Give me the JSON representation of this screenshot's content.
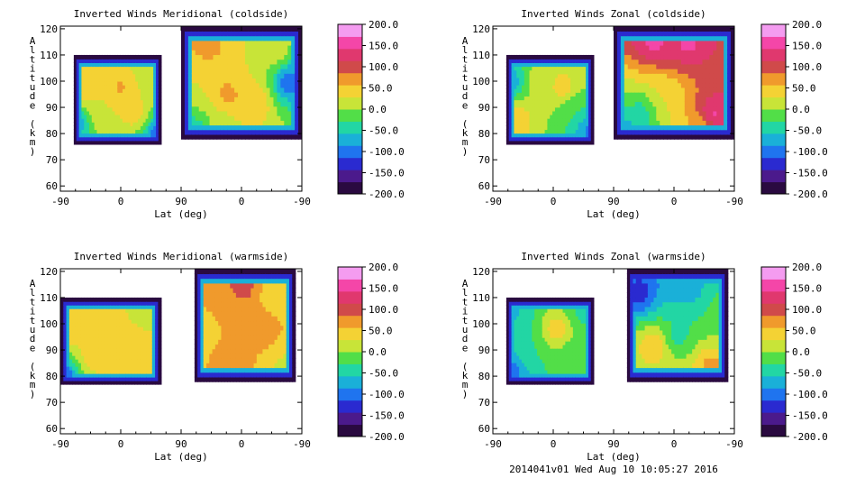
{
  "chart_data": [
    {
      "type": "heatmap",
      "title": "Inverted Winds Meridional (coldside)",
      "xlabel": "Lat (deg)",
      "ylabel": "Altitude (km)",
      "x_tick_labels": [
        "-90",
        "0",
        "90",
        "0",
        "-90"
      ],
      "y_ticks": [
        60,
        70,
        80,
        90,
        100,
        110,
        120
      ],
      "ylim": [
        58,
        121
      ],
      "colorbar_ticks": [
        "200.0",
        "150.0",
        "100.0",
        "50.0",
        "0.0",
        "-50.0",
        "-100.0",
        "-150.0",
        "-200.0"
      ],
      "clim": [
        -200,
        200
      ],
      "regions": [
        {
          "x_from": -70,
          "x_to": 60,
          "alt_from": 76,
          "alt_to": 110,
          "hotspots": [
            {
              "x": -55,
              "alt": 96,
              "v": 55
            },
            {
              "x": 0,
              "alt": 98,
              "v": 65
            },
            {
              "x": 20,
              "alt": 88,
              "v": 50
            },
            {
              "x": -30,
              "alt": 88,
              "v": 30
            },
            {
              "x": 40,
              "alt": 104,
              "v": 10
            },
            {
              "x": -65,
              "alt": 85,
              "v": -90
            },
            {
              "x": 55,
              "alt": 80,
              "v": -110
            }
          ]
        },
        {
          "x_from": 90,
          "x_to": 270,
          "alt_from": 78,
          "alt_to": 121,
          "hotspots": [
            {
              "x": 130,
              "alt": 115,
              "v": 70
            },
            {
              "x": 160,
              "alt": 95,
              "v": 70
            },
            {
              "x": 200,
              "alt": 92,
              "v": 60
            },
            {
              "x": 225,
              "alt": 112,
              "v": 30
            },
            {
              "x": 150,
              "alt": 83,
              "v": 10
            },
            {
              "x": 250,
              "alt": 100,
              "v": -110
            },
            {
              "x": 110,
              "alt": 80,
              "v": -60
            }
          ]
        }
      ]
    },
    {
      "type": "heatmap",
      "title": "Inverted Winds Zonal (coldside)",
      "xlabel": "Lat (deg)",
      "ylabel": "Altitude (km)",
      "x_tick_labels": [
        "-90",
        "0",
        "90",
        "0",
        "-90"
      ],
      "y_ticks": [
        60,
        70,
        80,
        90,
        100,
        110,
        120
      ],
      "ylim": [
        58,
        121
      ],
      "colorbar_ticks": [
        "200.0",
        "150.0",
        "100.0",
        "50.0",
        "0.0",
        "-50.0",
        "-100.0",
        "-150.0",
        "-200.0"
      ],
      "clim": [
        -200,
        200
      ],
      "regions": [
        {
          "x_from": -70,
          "x_to": 60,
          "alt_from": 76,
          "alt_to": 110,
          "hotspots": [
            {
              "x": -55,
              "alt": 86,
              "v": 60
            },
            {
              "x": 15,
              "alt": 98,
              "v": 55
            },
            {
              "x": -20,
              "alt": 100,
              "v": 20
            },
            {
              "x": 30,
              "alt": 90,
              "v": -30
            },
            {
              "x": 45,
              "alt": 104,
              "v": 10
            },
            {
              "x": -65,
              "alt": 100,
              "v": -90
            },
            {
              "x": 55,
              "alt": 82,
              "v": -100
            }
          ]
        },
        {
          "x_from": 90,
          "x_to": 270,
          "alt_from": 78,
          "alt_to": 121,
          "hotspots": [
            {
              "x": 150,
              "alt": 116,
              "v": 160
            },
            {
              "x": 200,
              "alt": 114,
              "v": 150
            },
            {
              "x": 240,
              "alt": 88,
              "v": 150
            },
            {
              "x": 170,
              "alt": 95,
              "v": 30
            },
            {
              "x": 130,
              "alt": 88,
              "v": -40
            },
            {
              "x": 110,
              "alt": 80,
              "v": -90
            },
            {
              "x": 220,
              "alt": 80,
              "v": 40
            }
          ]
        }
      ]
    },
    {
      "type": "heatmap",
      "title": "Inverted Winds Meridional (warmside)",
      "xlabel": "Lat (deg)",
      "ylabel": "Altitude (km)",
      "x_tick_labels": [
        "-90",
        "0",
        "90",
        "0",
        "-90"
      ],
      "y_ticks": [
        60,
        70,
        80,
        90,
        100,
        110,
        120
      ],
      "ylim": [
        58,
        121
      ],
      "colorbar_ticks": [
        "200.0",
        "150.0",
        "100.0",
        "50.0",
        "0.0",
        "-50.0",
        "-100.0",
        "-150.0",
        "-200.0"
      ],
      "clim": [
        -200,
        200
      ],
      "regions": [
        {
          "x_from": -90,
          "x_to": 60,
          "alt_from": 77,
          "alt_to": 110,
          "hotspots": [
            {
              "x": -70,
              "alt": 98,
              "v": 50
            },
            {
              "x": -15,
              "alt": 96,
              "v": 40
            },
            {
              "x": 25,
              "alt": 92,
              "v": 50
            },
            {
              "x": -40,
              "alt": 88,
              "v": 55
            },
            {
              "x": 40,
              "alt": 104,
              "v": 10
            },
            {
              "x": -85,
              "alt": 80,
              "v": -120
            }
          ]
        },
        {
          "x_from": 110,
          "x_to": 260,
          "alt_from": 78,
          "alt_to": 121,
          "hotspots": [
            {
              "x": 180,
              "alt": 115,
              "v": 110
            },
            {
              "x": 150,
              "alt": 108,
              "v": 60
            },
            {
              "x": 215,
              "alt": 98,
              "v": 70
            },
            {
              "x": 160,
              "alt": 86,
              "v": 80
            },
            {
              "x": 245,
              "alt": 84,
              "v": 20
            },
            {
              "x": 230,
              "alt": 112,
              "v": 30
            },
            {
              "x": 120,
              "alt": 95,
              "v": 30
            }
          ]
        }
      ]
    },
    {
      "type": "heatmap",
      "title": "Inverted Winds Zonal (warmside)",
      "xlabel": "Lat (deg)",
      "ylabel": "Altitude (km)",
      "x_tick_labels": [
        "-90",
        "0",
        "90",
        "0",
        "-90"
      ],
      "y_ticks": [
        60,
        70,
        80,
        90,
        100,
        110,
        120
      ],
      "ylim": [
        58,
        121
      ],
      "colorbar_ticks": [
        "200.0",
        "150.0",
        "100.0",
        "50.0",
        "0.0",
        "-50.0",
        "-100.0",
        "-150.0",
        "-200.0"
      ],
      "clim": [
        -200,
        200
      ],
      "regions": [
        {
          "x_from": -70,
          "x_to": 60,
          "alt_from": 77,
          "alt_to": 110,
          "hotspots": [
            {
              "x": 5,
              "alt": 98,
              "v": 55
            },
            {
              "x": -35,
              "alt": 90,
              "v": -30
            },
            {
              "x": 30,
              "alt": 88,
              "v": -20
            },
            {
              "x": -55,
              "alt": 104,
              "v": -60
            },
            {
              "x": 45,
              "alt": 105,
              "v": -40
            },
            {
              "x": -65,
              "alt": 82,
              "v": -110
            }
          ]
        },
        {
          "x_from": 110,
          "x_to": 260,
          "alt_from": 78,
          "alt_to": 121,
          "hotspots": [
            {
              "x": 130,
              "alt": 112,
              "v": -130
            },
            {
              "x": 200,
              "alt": 114,
              "v": -80
            },
            {
              "x": 150,
              "alt": 92,
              "v": 60
            },
            {
              "x": 235,
              "alt": 84,
              "v": 70
            },
            {
              "x": 185,
              "alt": 96,
              "v": -40
            },
            {
              "x": 250,
              "alt": 105,
              "v": -20
            }
          ]
        }
      ]
    }
  ],
  "footer": {
    "stamp": "2014041v01 Wed Aug 10 10:05:27 2016"
  },
  "colors": {
    "background": "#ffffff",
    "colorbar": [
      "#2a0a40",
      "#4b1a8c",
      "#2a2ad0",
      "#1f74ef",
      "#1ab0d8",
      "#22d6a4",
      "#52de48",
      "#c8e438",
      "#f4d234",
      "#f09a2c",
      "#d04a4a",
      "#e0386e",
      "#f446a8",
      "#f49cf0"
    ]
  }
}
